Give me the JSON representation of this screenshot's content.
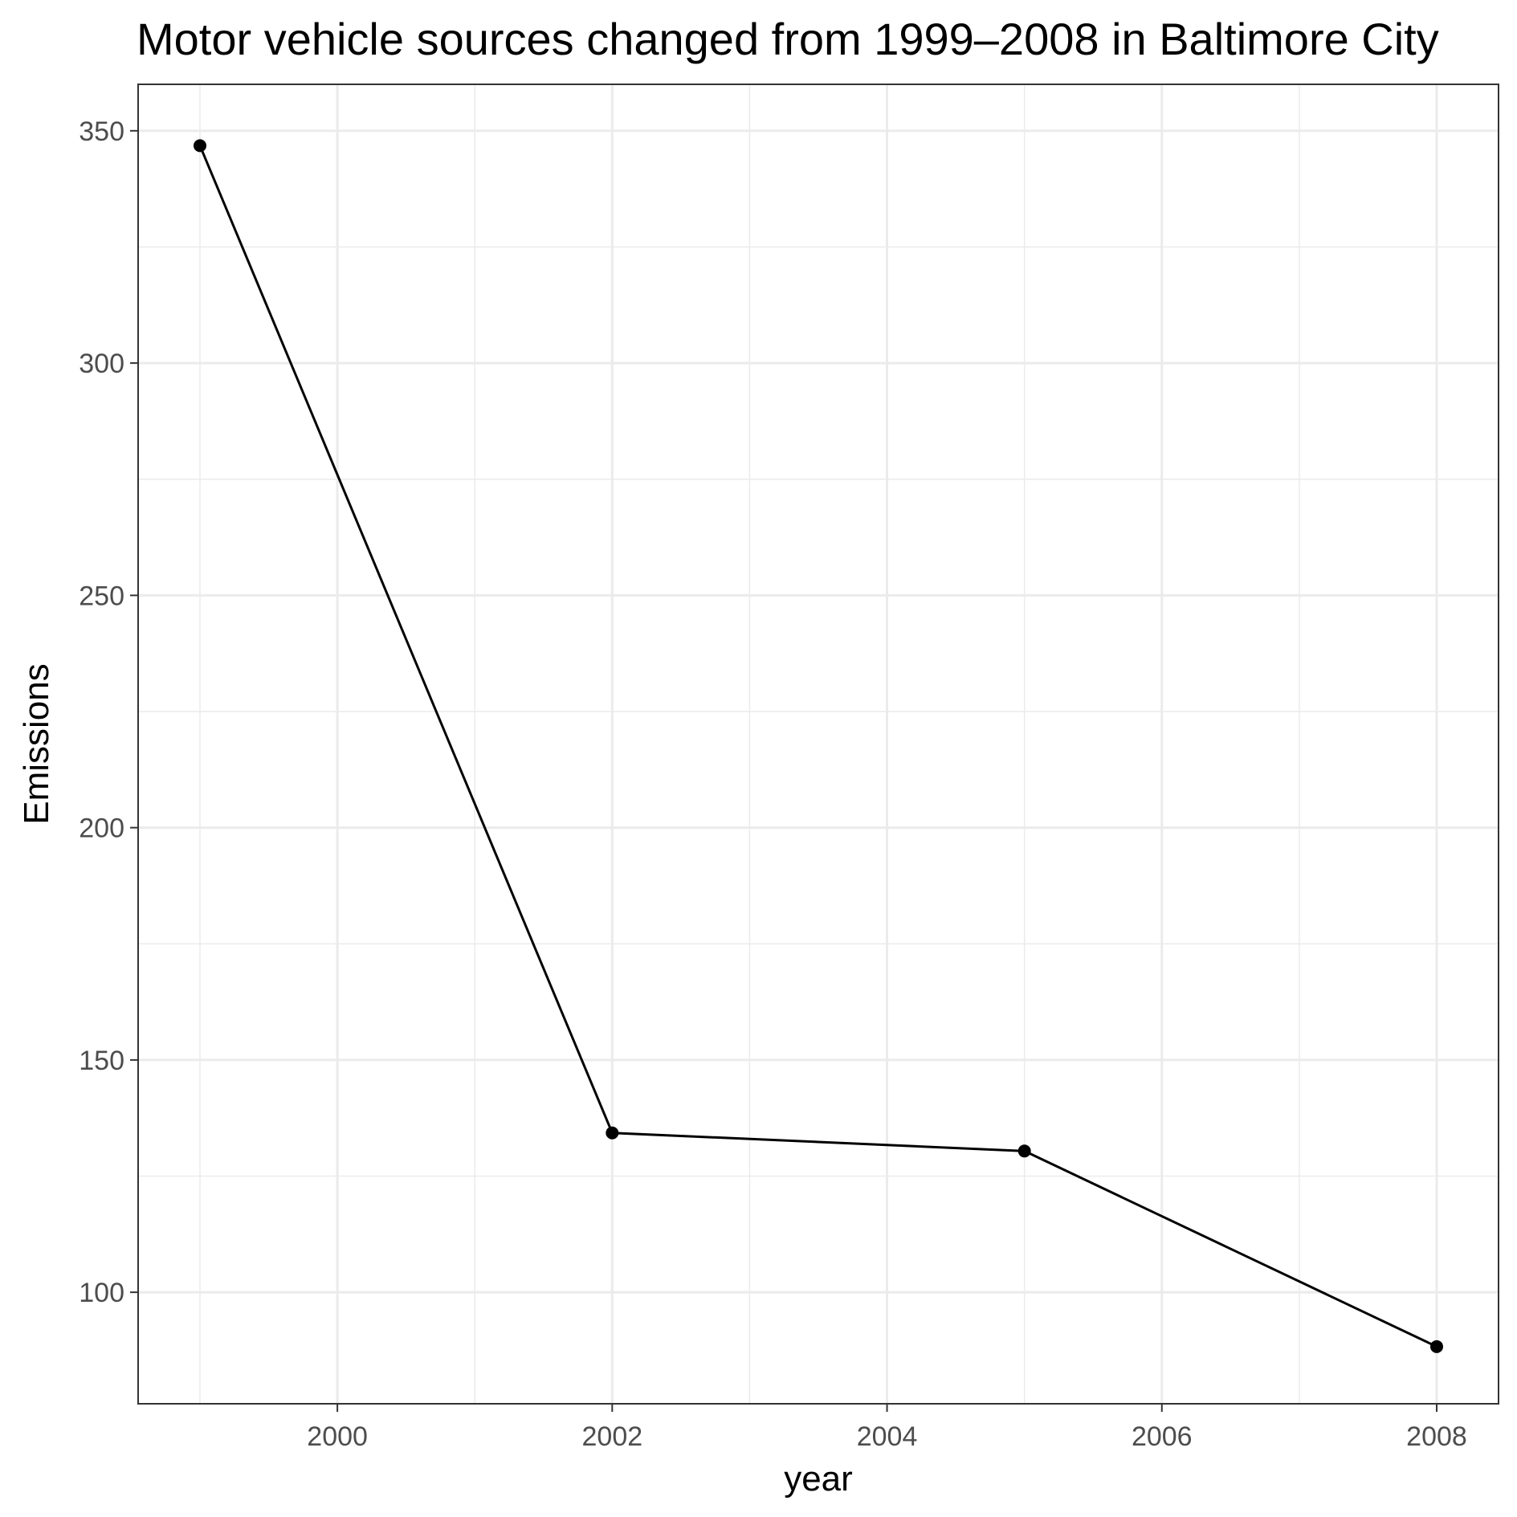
{
  "chart_data": {
    "type": "line",
    "title": "Motor vehicle sources changed from 1999–2008 in Baltimore City",
    "xlabel": "year",
    "ylabel": "Emissions",
    "x": [
      1999,
      2002,
      2005,
      2008
    ],
    "series": [
      {
        "values": [
          346.8,
          134.3,
          130.4,
          88.3
        ]
      }
    ],
    "xlim": [
      1998.55,
      2008.45
    ],
    "ylim": [
      76,
      360
    ],
    "x_ticks": [
      2000,
      2002,
      2004,
      2006,
      2008
    ],
    "x_tick_labels": [
      "2000",
      "2002",
      "2004",
      "2006",
      "2008"
    ],
    "x_minor_ticks": [
      1999,
      2001,
      2003,
      2005,
      2007
    ],
    "y_ticks": [
      100,
      150,
      200,
      250,
      300,
      350
    ],
    "y_tick_labels": [
      "100",
      "150",
      "200",
      "250",
      "300",
      "350"
    ],
    "y_minor_ticks": [
      125,
      175,
      225,
      275,
      325
    ],
    "grid": true,
    "legend": "none",
    "colors": {
      "line": "#000000",
      "grid": "#ebebeb",
      "panel_border": "#333333",
      "tick_label": "#4d4d4d"
    }
  }
}
